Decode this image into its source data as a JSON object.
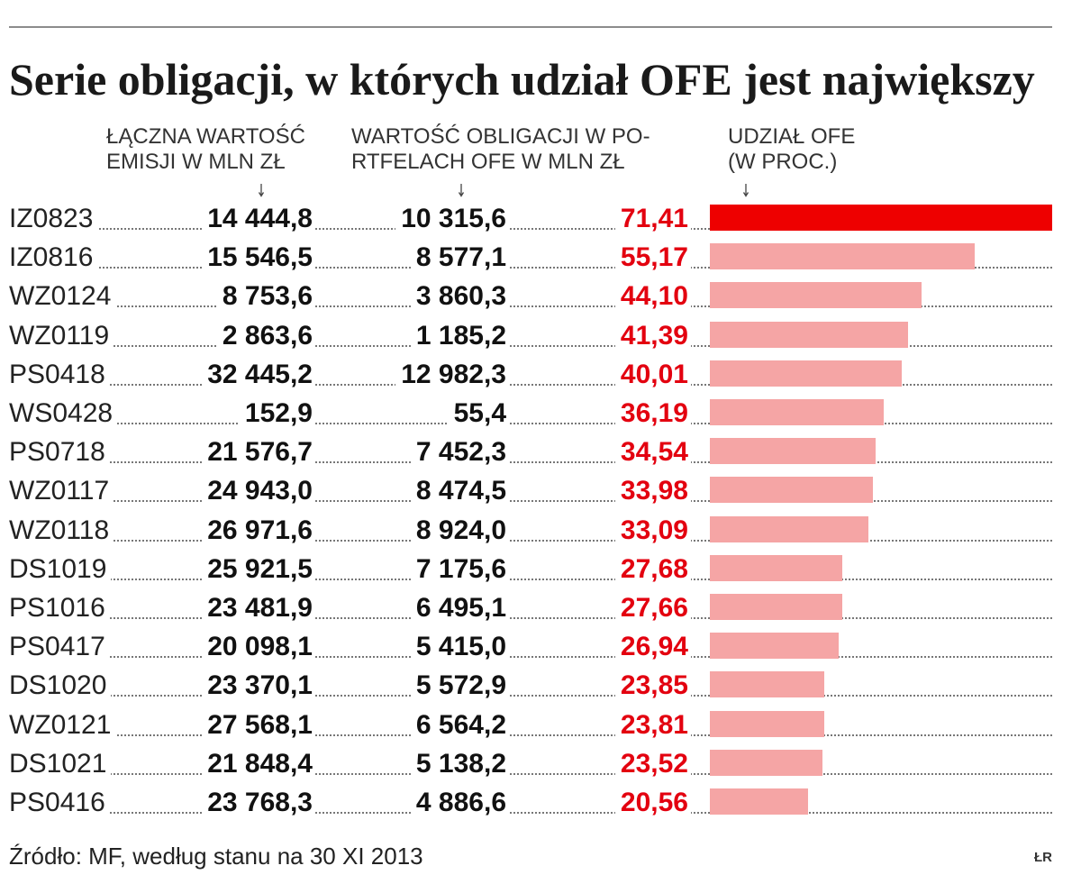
{
  "colors": {
    "rule": "#8c8c8c",
    "share_text": "#e3000f",
    "bar_highlight": "#ee0000",
    "bar": "#f5a5a5",
    "leader_dots": "#777777"
  },
  "pointer_icon": "arrow-down-icon",
  "chart_data": {
    "type": "bar",
    "title": "Serie obligacji, w których udział OFE jest największy",
    "categories": [
      "IZ0823",
      "IZ0816",
      "WZ0124",
      "WZ0119",
      "PS0418",
      "WS0428",
      "PS0718",
      "WZ0117",
      "WZ0118",
      "DS1019",
      "PS1016",
      "PS0417",
      "DS1020",
      "WZ0121",
      "DS1021",
      "PS0416"
    ],
    "table_columns": [
      {
        "header": [
          "ŁĄCZNA WARTOŚĆ",
          "EMISJI W MLN ZŁ"
        ],
        "values": [
          14444.8,
          15546.5,
          8753.6,
          2863.6,
          32445.2,
          152.9,
          21576.7,
          24943.0,
          26971.6,
          25921.5,
          23481.9,
          20098.1,
          23370.1,
          27568.1,
          21848.4,
          23768.3
        ]
      },
      {
        "header": [
          "WARTOŚĆ OBLIGACJI W PO-",
          "RTFELACH OFE W MLN ZŁ"
        ],
        "values": [
          10315.6,
          8577.1,
          3860.3,
          1185.2,
          12982.3,
          55.4,
          7452.3,
          8474.5,
          8924.0,
          7175.6,
          6495.1,
          5415.0,
          5572.9,
          6564.2,
          5138.2,
          4886.6
        ]
      }
    ],
    "series": [
      {
        "header": [
          "UDZIAŁ OFE",
          "(W PROC.)"
        ],
        "values": [
          71.41,
          55.17,
          44.1,
          41.39,
          40.01,
          36.19,
          34.54,
          33.98,
          33.09,
          27.68,
          27.66,
          26.94,
          23.85,
          23.81,
          23.52,
          20.56
        ]
      }
    ]
  },
  "footer": {
    "source": "Źródło: MF, według stanu na 30 XI 2013",
    "credit": "ŁR"
  }
}
